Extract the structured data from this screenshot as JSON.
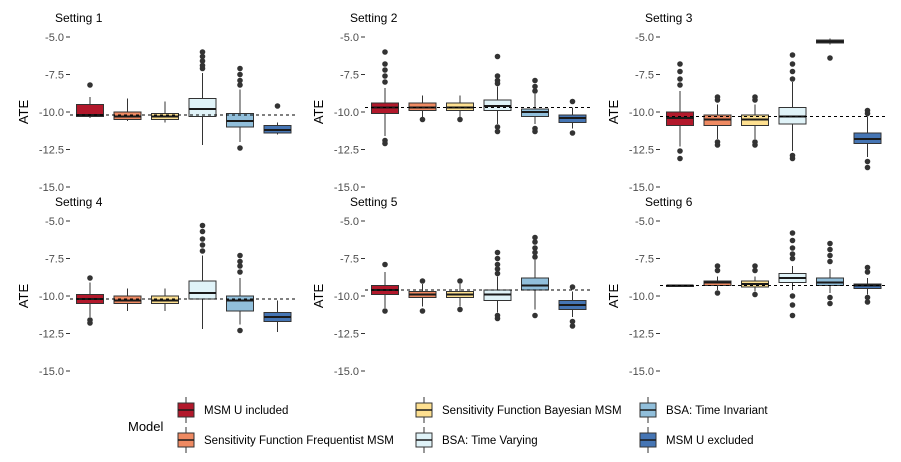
{
  "chart_data": {
    "type": "boxplot",
    "ylabel": "ATE",
    "yticks": [
      "-5.0",
      "-7.5",
      "-10.0",
      "-12.5",
      "-15.0"
    ],
    "ylim": [
      -15.0,
      -5.0
    ],
    "legend": {
      "title": "Model",
      "position": "bottom",
      "items": [
        {
          "label": "MSM U included",
          "color": "#b2182b"
        },
        {
          "label": "Sensitivity Function Frequentist MSM",
          "color": "#ef8a62"
        },
        {
          "label": "Sensitivity Function Bayesian MSM",
          "color": "#fee090"
        },
        {
          "label": "BSA: Time Varying",
          "color": "#e0f3f8"
        },
        {
          "label": "BSA: Time Invariant",
          "color": "#91bfdb"
        },
        {
          "label": "MSM U excluded",
          "color": "#4575b4"
        }
      ]
    },
    "panels": [
      {
        "title": "Setting 1",
        "reference": -10.2,
        "boxes": [
          {
            "model": "MSM U included",
            "min": -10.4,
            "q1": -10.3,
            "median": -10.2,
            "q3": -9.5,
            "max": -9.0,
            "outliers": [
              -8.2
            ]
          },
          {
            "model": "Sensitivity Function Frequentist MSM",
            "min": -10.6,
            "q1": -10.5,
            "median": -10.3,
            "q3": -10.0,
            "max": -9.1,
            "outliers": []
          },
          {
            "model": "Sensitivity Function Bayesian MSM",
            "min": -10.7,
            "q1": -10.5,
            "median": -10.3,
            "q3": -10.1,
            "max": -9.3,
            "outliers": []
          },
          {
            "model": "BSA: Time Varying",
            "min": -12.2,
            "q1": -10.3,
            "median": -9.8,
            "q3": -9.1,
            "max": -7.4,
            "outliers": [
              -6.0,
              -6.3,
              -6.6,
              -6.9,
              -7.1
            ]
          },
          {
            "model": "BSA: Time Invariant",
            "min": -12.0,
            "q1": -11.0,
            "median": -10.6,
            "q3": -10.1,
            "max": -8.5,
            "outliers": [
              -7.1,
              -7.5,
              -7.9,
              -8.2,
              -12.4
            ]
          },
          {
            "model": "MSM U excluded",
            "min": -11.5,
            "q1": -11.4,
            "median": -11.2,
            "q3": -10.9,
            "max": -10.7,
            "outliers": [
              -9.6
            ]
          }
        ]
      },
      {
        "title": "Setting 2",
        "reference": -9.7,
        "boxes": [
          {
            "model": "MSM U included",
            "min": -11.6,
            "q1": -10.1,
            "median": -9.7,
            "q3": -9.4,
            "max": -8.4,
            "outliers": [
              -6.0,
              -6.8,
              -7.2,
              -7.6,
              -8.0,
              -11.9,
              -12.1
            ]
          },
          {
            "model": "Sensitivity Function Frequentist MSM",
            "min": -10.4,
            "q1": -9.9,
            "median": -9.7,
            "q3": -9.4,
            "max": -8.9,
            "outliers": [
              -10.5
            ]
          },
          {
            "model": "Sensitivity Function Bayesian MSM",
            "min": -10.4,
            "q1": -9.9,
            "median": -9.7,
            "q3": -9.4,
            "max": -8.9,
            "outliers": [
              -10.5
            ]
          },
          {
            "model": "BSA: Time Varying",
            "min": -10.8,
            "q1": -9.9,
            "median": -9.6,
            "q3": -9.2,
            "max": -8.3,
            "outliers": [
              -6.3,
              -7.6,
              -7.9,
              -8.1,
              -11.0,
              -11.3
            ]
          },
          {
            "model": "BSA: Time Invariant",
            "min": -10.8,
            "q1": -10.3,
            "median": -10.0,
            "q3": -9.8,
            "max": -8.8,
            "outliers": [
              -7.9,
              -8.3,
              -8.6,
              -11.1,
              -11.3
            ]
          },
          {
            "model": "MSM U excluded",
            "min": -11.1,
            "q1": -10.7,
            "median": -10.4,
            "q3": -10.2,
            "max": -9.7,
            "outliers": [
              -9.3,
              -11.4
            ]
          }
        ]
      },
      {
        "title": "Setting 3",
        "reference": -10.3,
        "boxes": [
          {
            "model": "MSM U included",
            "min": -12.3,
            "q1": -10.9,
            "median": -10.4,
            "q3": -10.0,
            "max": -8.6,
            "outliers": [
              -6.8,
              -7.3,
              -7.8,
              -8.2,
              -12.6,
              -13.1
            ]
          },
          {
            "model": "Sensitivity Function Frequentist MSM",
            "min": -11.8,
            "q1": -10.9,
            "median": -10.5,
            "q3": -10.2,
            "max": -9.5,
            "outliers": [
              -9.0,
              -9.2,
              -12.0,
              -12.2
            ]
          },
          {
            "model": "Sensitivity Function Bayesian MSM",
            "min": -11.8,
            "q1": -10.9,
            "median": -10.5,
            "q3": -10.2,
            "max": -9.5,
            "outliers": [
              -9.0,
              -9.2,
              -12.0,
              -12.2
            ]
          },
          {
            "model": "BSA: Time Varying",
            "min": -12.6,
            "q1": -10.8,
            "median": -10.3,
            "q3": -9.7,
            "max": -8.0,
            "outliers": [
              -6.2,
              -6.8,
              -7.3,
              -7.8,
              -12.9,
              -13.1
            ]
          },
          {
            "model": "BSA: Time Invariant",
            "min": -5.5,
            "q1": -5.4,
            "median": -5.3,
            "q3": -5.2,
            "max": -5.1,
            "outliers": [
              -6.4
            ]
          },
          {
            "model": "MSM U excluded",
            "min": -13.0,
            "q1": -12.1,
            "median": -11.8,
            "q3": -11.4,
            "max": -10.3,
            "outliers": [
              -9.9,
              -10.1,
              -13.3,
              -13.7
            ]
          }
        ]
      },
      {
        "title": "Setting 4",
        "reference": -10.2,
        "boxes": [
          {
            "model": "MSM U included",
            "min": -11.4,
            "q1": -10.5,
            "median": -10.2,
            "q3": -9.9,
            "max": -9.1,
            "outliers": [
              -8.8,
              -11.6,
              -11.8
            ]
          },
          {
            "model": "Sensitivity Function Frequentist MSM",
            "min": -11.0,
            "q1": -10.5,
            "median": -10.3,
            "q3": -10.0,
            "max": -9.5,
            "outliers": []
          },
          {
            "model": "Sensitivity Function Bayesian MSM",
            "min": -11.0,
            "q1": -10.5,
            "median": -10.3,
            "q3": -10.0,
            "max": -9.5,
            "outliers": []
          },
          {
            "model": "BSA: Time Varying",
            "min": -12.2,
            "q1": -10.2,
            "median": -9.8,
            "q3": -9.0,
            "max": -7.3,
            "outliers": [
              -5.3,
              -5.7,
              -6.2,
              -6.6,
              -7.0
            ]
          },
          {
            "model": "BSA: Time Invariant",
            "min": -11.9,
            "q1": -11.0,
            "median": -10.3,
            "q3": -10.0,
            "max": -8.8,
            "outliers": [
              -7.3,
              -7.7,
              -8.0,
              -8.4,
              -12.3
            ]
          },
          {
            "model": "MSM U excluded",
            "min": -12.4,
            "q1": -11.7,
            "median": -11.4,
            "q3": -11.1,
            "max": -10.3,
            "outliers": []
          }
        ]
      },
      {
        "title": "Setting 5",
        "reference": -9.6,
        "boxes": [
          {
            "model": "MSM U included",
            "min": -10.8,
            "q1": -9.9,
            "median": -9.6,
            "q3": -9.3,
            "max": -8.4,
            "outliers": [
              -7.9,
              -11.0
            ]
          },
          {
            "model": "Sensitivity Function Frequentist MSM",
            "min": -10.7,
            "q1": -10.1,
            "median": -9.9,
            "q3": -9.7,
            "max": -9.2,
            "outliers": [
              -9.0,
              -11.0
            ]
          },
          {
            "model": "Sensitivity Function Bayesian MSM",
            "min": -10.7,
            "q1": -10.1,
            "median": -9.9,
            "q3": -9.7,
            "max": -9.2,
            "outliers": [
              -9.0,
              -10.9
            ]
          },
          {
            "model": "BSA: Time Varying",
            "min": -11.1,
            "q1": -10.3,
            "median": -9.9,
            "q3": -9.6,
            "max": -8.7,
            "outliers": [
              -7.1,
              -7.5,
              -7.9,
              -8.2,
              -8.5,
              -11.3,
              -11.5
            ]
          },
          {
            "model": "BSA: Time Invariant",
            "min": -10.9,
            "q1": -9.6,
            "median": -9.3,
            "q3": -8.8,
            "max": -7.6,
            "outliers": [
              -6.1,
              -6.4,
              -6.8,
              -7.1,
              -7.4,
              -11.3
            ]
          },
          {
            "model": "MSM U excluded",
            "min": -11.4,
            "q1": -10.9,
            "median": -10.6,
            "q3": -10.3,
            "max": -9.7,
            "outliers": [
              -9.4,
              -11.7,
              -12.0
            ]
          }
        ]
      },
      {
        "title": "Setting 6",
        "reference": -9.3,
        "boxes": [
          {
            "model": "MSM U included",
            "min": -9.3,
            "q1": -9.3,
            "median": -9.3,
            "q3": -9.3,
            "max": -9.3,
            "outliers": []
          },
          {
            "model": "Sensitivity Function Frequentist MSM",
            "min": -9.6,
            "q1": -9.3,
            "median": -9.1,
            "q3": -9.0,
            "max": -8.7,
            "outliers": [
              -8.0,
              -8.3,
              -9.8
            ]
          },
          {
            "model": "Sensitivity Function Bayesian MSM",
            "min": -9.7,
            "q1": -9.4,
            "median": -9.2,
            "q3": -9.0,
            "max": -8.7,
            "outliers": [
              -8.0,
              -8.3,
              -9.9
            ]
          },
          {
            "model": "BSA: Time Varying",
            "min": -9.6,
            "q1": -9.1,
            "median": -8.8,
            "q3": -8.5,
            "max": -8.0,
            "outliers": [
              -5.8,
              -6.3,
              -6.8,
              -7.2,
              -7.5,
              -10.0,
              -10.6,
              -11.3
            ]
          },
          {
            "model": "BSA: Time Invariant",
            "min": -9.8,
            "q1": -9.3,
            "median": -9.1,
            "q3": -8.8,
            "max": -8.2,
            "outliers": [
              -6.5,
              -6.9,
              -7.3,
              -7.7,
              -10.1,
              -10.5
            ]
          },
          {
            "model": "MSM U excluded",
            "min": -9.9,
            "q1": -9.5,
            "median": -9.3,
            "q3": -9.2,
            "max": -8.8,
            "outliers": [
              -8.1,
              -8.4,
              -10.1,
              -10.4
            ]
          }
        ]
      }
    ]
  }
}
